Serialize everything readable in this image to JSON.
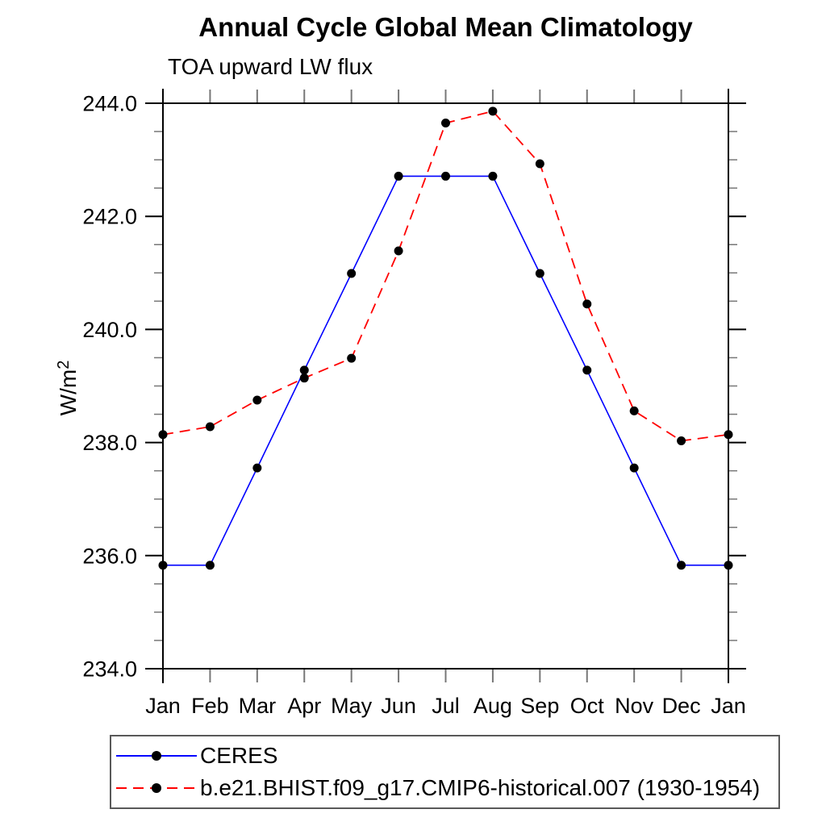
{
  "page": {
    "background": "#ffffff"
  },
  "chart_data": {
    "type": "line",
    "title": "Annual Cycle Global Mean Climatology",
    "subtitle": "TOA upward LW flux",
    "ylabel": "W/m²",
    "ylabel_parts": {
      "base": "W/m",
      "sup": "2"
    },
    "x_categories": [
      "Jan",
      "Feb",
      "Mar",
      "Apr",
      "May",
      "Jun",
      "Jul",
      "Aug",
      "Sep",
      "Oct",
      "Nov",
      "Dec",
      "Jan"
    ],
    "ylim": [
      234.0,
      244.0
    ],
    "ytick_major_interval": 2.0,
    "ytick_minor_interval": 0.5,
    "yticks": [
      {
        "value": 234.0,
        "label": "234.0"
      },
      {
        "value": 236.0,
        "label": "236.0"
      },
      {
        "value": 238.0,
        "label": "238.0"
      },
      {
        "value": 240.0,
        "label": "240.0"
      },
      {
        "value": 242.0,
        "label": "242.0"
      },
      {
        "value": 244.0,
        "label": "244.0"
      }
    ],
    "grid": false,
    "legend_position": "bottom-left",
    "axis_color": "#000000",
    "minor_tick_color": "#777777",
    "series": [
      {
        "name": "CERES",
        "color": "#0000ff",
        "line_style": "solid",
        "marker": "circle",
        "marker_color": "#000000",
        "values": [
          235.83,
          235.83,
          237.55,
          239.28,
          240.99,
          242.71,
          242.71,
          242.71,
          240.99,
          239.28,
          237.55,
          235.83,
          235.83
        ]
      },
      {
        "name": "b.e21.BHIST.f09_g17.CMIP6-historical.007 (1930-1954)",
        "color": "#ff0000",
        "line_style": "dashed",
        "marker": "circle",
        "marker_color": "#000000",
        "values": [
          238.14,
          238.28,
          238.75,
          239.14,
          239.49,
          241.39,
          243.65,
          243.86,
          242.93,
          240.45,
          238.56,
          238.03,
          238.14
        ]
      }
    ]
  }
}
